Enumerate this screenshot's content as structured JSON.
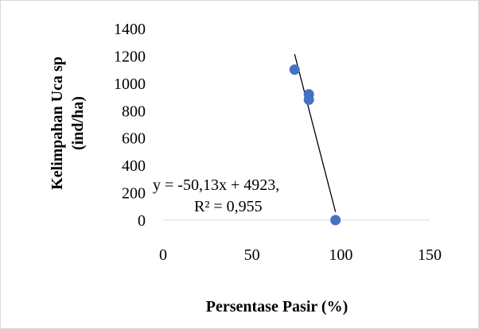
{
  "chart_data": {
    "type": "scatter",
    "title": "",
    "xlabel": "Persentase Pasir (%)",
    "ylabel_lines": [
      "Kelimpahan Uca sp",
      "(ind/ha)"
    ],
    "xlim": [
      0,
      150
    ],
    "ylim": [
      0,
      1400
    ],
    "x_ticks": [
      0,
      50,
      100,
      150
    ],
    "y_ticks": [
      0,
      200,
      400,
      600,
      800,
      1000,
      1200,
      1400
    ],
    "points": [
      {
        "x": 74,
        "y": 1100
      },
      {
        "x": 82,
        "y": 920
      },
      {
        "x": 82,
        "y": 880
      },
      {
        "x": 97,
        "y": 0
      }
    ],
    "marker_color": "#4472c4",
    "trendline": {
      "type": "linear",
      "slope": -50.13,
      "intercept": 4923,
      "x_range": [
        74,
        97
      ],
      "color": "#000000",
      "equation_lines": [
        "y = -50,13x + 4923,",
        "R² = 0,955"
      ]
    },
    "grid": false,
    "legend": "none"
  }
}
